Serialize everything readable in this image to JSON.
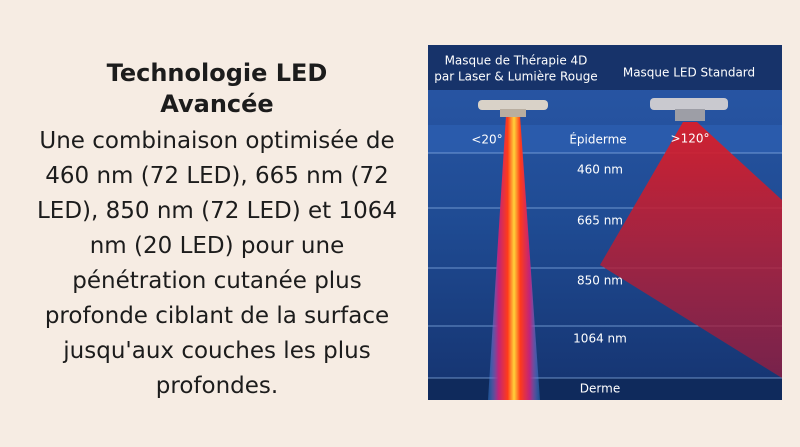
{
  "left": {
    "title": "Technologie LED Avancée",
    "body": "Une combinaison optimisée de 460 nm (72 LED), 665 nm (72 LED), 850 nm (72 LED) et 1064 nm (20 LED) pour une pénétration cutanée plus profonde ciblant de la surface jusqu'aux couches les plus profondes."
  },
  "diagram": {
    "laser_label_line1": "Masque de Thérapie 4D",
    "laser_label_line2": "par Laser & Lumière Rouge",
    "standard_label": "Masque LED Standard",
    "laser_angle": "<20°",
    "standard_angle": ">120°",
    "layers": [
      "Épiderme",
      "460 nm",
      "665 nm",
      "850 nm",
      "1064 nm",
      "Derme"
    ]
  }
}
